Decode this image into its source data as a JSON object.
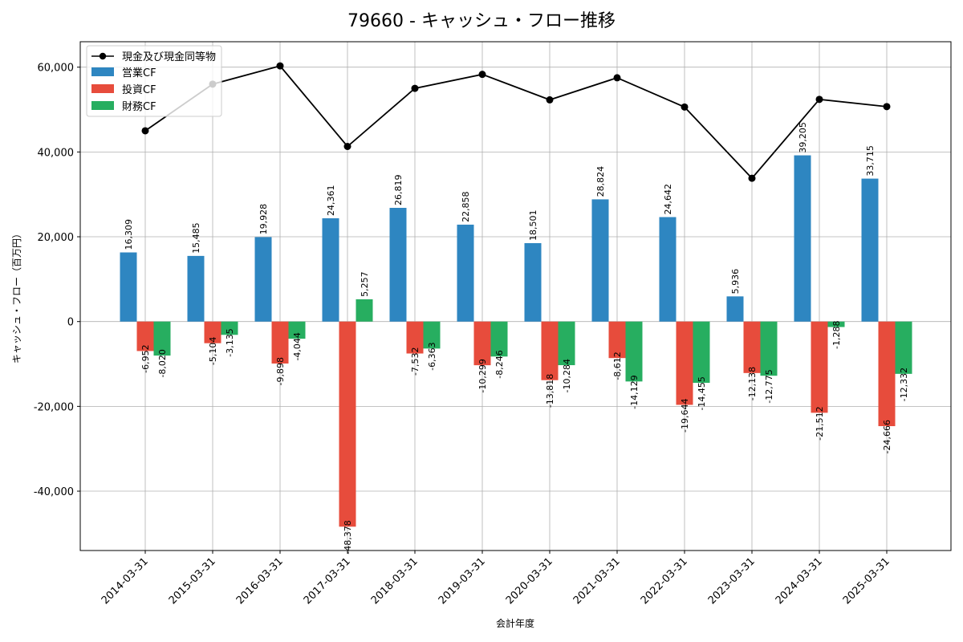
{
  "chart_data": {
    "type": "bar",
    "title": "79660 - キャッシュ・フロー推移",
    "xlabel": "会計年度",
    "ylabel": "キャッシュ・フロー（百万円）",
    "ylim": [
      -54000,
      66000
    ],
    "yticks": [
      -40000,
      -20000,
      0,
      20000,
      40000,
      60000
    ],
    "ytick_labels": [
      "-40,000",
      "-20,000",
      "0",
      "20,000",
      "40,000",
      "60,000"
    ],
    "grid": true,
    "legend_position": "top-left",
    "categories": [
      "2014-03-31",
      "2015-03-31",
      "2016-03-31",
      "2017-03-31",
      "2018-03-31",
      "2019-03-31",
      "2020-03-31",
      "2021-03-31",
      "2022-03-31",
      "2023-03-31",
      "2024-03-31",
      "2025-03-31"
    ],
    "series": [
      {
        "name": "営業CF",
        "type": "bar",
        "color": "#2e86c1",
        "values": [
          16309,
          15485,
          19928,
          24361,
          26819,
          22858,
          18501,
          28824,
          24642,
          5936,
          39205,
          33715
        ],
        "labels": [
          "16,309",
          "15,485",
          "19,928",
          "24,361",
          "26,819",
          "22,858",
          "18,501",
          "28,824",
          "24,642",
          "5,936",
          "39,205",
          "33,715"
        ]
      },
      {
        "name": "投資CF",
        "type": "bar",
        "color": "#e74c3c",
        "values": [
          -6952,
          -5104,
          -9898,
          -48378,
          -7532,
          -10299,
          -13818,
          -8612,
          -19644,
          -12138,
          -21512,
          -24666
        ],
        "labels": [
          "-6,952",
          "-5,104",
          "-9,898",
          "-48,378",
          "-7,532",
          "-10,299",
          "-13,818",
          "-8,612",
          "-19,644",
          "-12,138",
          "-21,512",
          "-24,666"
        ]
      },
      {
        "name": "財務CF",
        "type": "bar",
        "color": "#27ae60",
        "values": [
          -8020,
          -3135,
          -4044,
          5257,
          -6363,
          -8246,
          -10284,
          -14129,
          -14455,
          -12775,
          -1288,
          -12332
        ],
        "labels": [
          "-8,020",
          "-3,135",
          "-4,044",
          "5,257",
          "-6,363",
          "-8,246",
          "-10,284",
          "-14,129",
          "-14,455",
          "-12,775",
          "-1,288",
          "-12,332"
        ]
      },
      {
        "name": "現金及び現金同等物",
        "type": "line",
        "color": "#000000",
        "values": [
          45000,
          56000,
          60300,
          41300,
          55000,
          58300,
          52300,
          57500,
          50600,
          33800,
          52400,
          50700
        ]
      }
    ]
  }
}
